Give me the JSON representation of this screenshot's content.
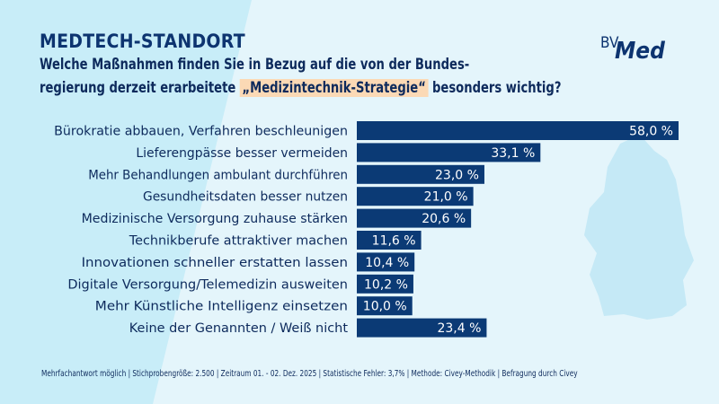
{
  "colors": {
    "bar": "#0b3a75",
    "bar_label": "#ffffff",
    "background": "#e4f5fb",
    "stripe": "#c8edf8",
    "map": "#c5e9f6",
    "highlight": "#fbd9b5"
  },
  "header": {
    "title": "MEDTECH-STANDORT",
    "subtitle_line1": "Welche Maßnahmen finden Sie in Bezug auf die von der Bundes-",
    "subtitle_line2_pre": "regierung derzeit erarbeitete ",
    "subtitle_line2_highlight": "„Medizintechnik-Strategie“",
    "subtitle_line2_post": " besonders wichtig?"
  },
  "logo": {
    "text": "BVMed"
  },
  "chart_data": {
    "type": "bar",
    "orientation": "horizontal",
    "categories": [
      "Bürokratie abbauen, Verfahren beschleunigen",
      "Lieferengpässe besser vermeiden",
      "Mehr Behandlungen ambulant durchführen",
      "Gesundheitsdaten besser nutzen",
      "Medizinische Versorgung zuhause stärken",
      "Technikberufe attraktiver machen",
      "Innovationen schneller erstatten lassen",
      "Digitale Versorgung/Telemedizin ausweiten",
      "Mehr Künstliche Intelligenz einsetzen",
      "Keine der Genannten / Weiß nicht"
    ],
    "values": [
      58.0,
      33.1,
      23.0,
      21.0,
      20.6,
      11.6,
      10.4,
      10.2,
      10.0,
      23.4
    ],
    "value_labels": [
      "58,0 %",
      "33,1 %",
      "23,0 %",
      "21,0 %",
      "20,6 %",
      "11,6 %",
      "10,4 %",
      "10,2 %",
      "10,0 %",
      "23,4 %"
    ],
    "unit": "%",
    "xlim": [
      0,
      58
    ],
    "grid": false
  },
  "footer": {
    "note": "Mehrfachantwort möglich | Stichprobengröße: 2.500 | Zeitraum 01. - 02. Dez. 2025 | Statistische Fehler: 3,7% | Methode: Civey-Methodik | Befragung durch Civey"
  }
}
